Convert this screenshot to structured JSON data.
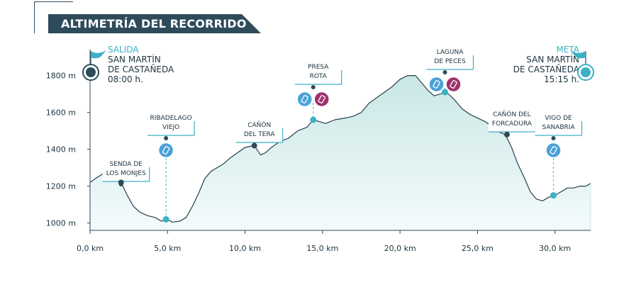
{
  "title": "ALTIMETRÍA DEL RECORRIDO",
  "start": {
    "label": "SALIDA",
    "place_line1": "SAN MARTÍN",
    "place_line2": "DE CASTAÑEDA",
    "time": "08:00 h."
  },
  "finish": {
    "label": "META",
    "place_line1": "SAN MARTÍN",
    "place_line2": "DE CASTAÑEDA",
    "time": "15:15 h."
  },
  "colors": {
    "accent": "#3cb0c4",
    "dark": "#2d4b5b",
    "food": "#4aa1d9",
    "drink": "#a0336e",
    "fill_top": "#c9e7e5",
    "fill_bottom": "#f4fbfb"
  },
  "chart_data": {
    "type": "area",
    "title": "ALTIMETRÍA DEL RECORRIDO",
    "xlabel": "",
    "ylabel": "",
    "xlim": [
      0,
      32.3
    ],
    "ylim": [
      960,
      1960
    ],
    "y_ticks": [
      1000,
      1200,
      1400,
      1600,
      1800
    ],
    "y_tick_labels": [
      "1000 m",
      "1200 m",
      "1400 m",
      "1600 m",
      "1800 m"
    ],
    "x_ticks": [
      0,
      5,
      10,
      15,
      20,
      25,
      30
    ],
    "x_tick_labels": [
      "0,0 km",
      "5,0 km",
      "10,0 km",
      "15,0 km",
      "20,0 km",
      "25,0 km",
      "30,0 km"
    ],
    "grid": false,
    "profile": {
      "x": [
        0,
        0.5,
        0.9,
        1.3,
        1.6,
        2.0,
        2.4,
        2.8,
        3.2,
        3.7,
        4.2,
        4.6,
        5.0,
        5.3,
        5.8,
        6.2,
        6.6,
        7.0,
        7.4,
        7.8,
        8.2,
        8.6,
        9.0,
        9.5,
        10.0,
        10.6,
        11.0,
        11.3,
        11.7,
        12.2,
        12.8,
        13.4,
        14.0,
        14.4,
        14.8,
        15.2,
        15.8,
        16.5,
        17.0,
        17.5,
        18.0,
        18.5,
        19.0,
        19.5,
        20.0,
        20.5,
        21.0,
        21.4,
        21.8,
        22.2,
        22.6,
        23.0,
        23.5,
        24.0,
        24.5,
        25.0,
        25.5,
        26.0,
        26.5,
        26.8,
        27.2,
        27.6,
        28.0,
        28.4,
        28.8,
        29.2,
        29.6,
        30.0,
        30.4,
        30.8,
        31.2,
        31.6,
        32.0,
        32.3
      ],
      "y": [
        1220,
        1250,
        1270,
        1300,
        1270,
        1220,
        1150,
        1090,
        1060,
        1040,
        1030,
        1010,
        1020,
        1005,
        1010,
        1030,
        1090,
        1160,
        1240,
        1280,
        1300,
        1320,
        1350,
        1380,
        1410,
        1420,
        1370,
        1380,
        1410,
        1440,
        1460,
        1500,
        1520,
        1560,
        1550,
        1540,
        1560,
        1570,
        1580,
        1600,
        1650,
        1680,
        1710,
        1740,
        1780,
        1800,
        1800,
        1760,
        1720,
        1690,
        1700,
        1710,
        1670,
        1620,
        1590,
        1570,
        1550,
        1520,
        1490,
        1480,
        1410,
        1320,
        1250,
        1170,
        1130,
        1120,
        1140,
        1150,
        1170,
        1190,
        1190,
        1200,
        1200,
        1215
      ]
    },
    "waypoints": [
      {
        "name_line1": "SENDA DE",
        "name_line2": "LOS MONJES",
        "x": 2.0,
        "y": 1220,
        "marker": "dark",
        "icons": []
      },
      {
        "name_line1": "RIBADELAGO",
        "name_line2": "VIEJO",
        "x": 4.9,
        "y": 1020,
        "marker": "accent",
        "icons": [
          "food"
        ]
      },
      {
        "name_line1": "CAÑÓN",
        "name_line2": "DEL TERA",
        "x": 10.6,
        "y": 1420,
        "marker": "dark",
        "icons": []
      },
      {
        "name_line1": "PRESA",
        "name_line2": "ROTA",
        "x": 14.4,
        "y": 1560,
        "marker": "accent",
        "icons": [
          "food",
          "drink"
        ]
      },
      {
        "name_line1": "LAGUNA",
        "name_line2": "DE PECES",
        "x": 22.9,
        "y": 1710,
        "marker": "accent",
        "icons": [
          "food",
          "drink"
        ]
      },
      {
        "name_line1": "CAÑÓN DEL",
        "name_line2": "FORCADURA",
        "x": 26.9,
        "y": 1480,
        "marker": "dark",
        "icons": []
      },
      {
        "name_line1": "VIGO DE",
        "name_line2": "SANABRIA",
        "x": 29.9,
        "y": 1150,
        "marker": "accent",
        "icons": [
          "food"
        ]
      }
    ]
  }
}
